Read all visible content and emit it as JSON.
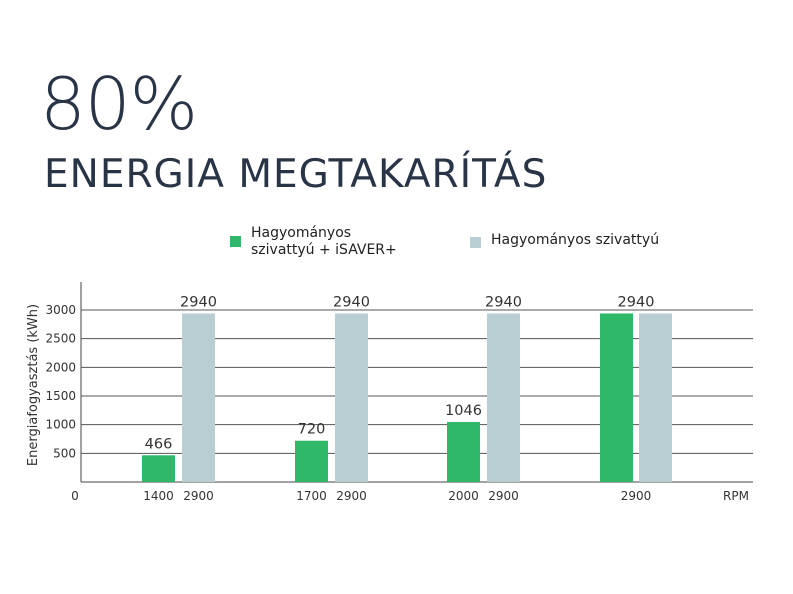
{
  "header": {
    "percent": "80%",
    "title": "ENERGIA MEGTAKARÍTÁS"
  },
  "colors": {
    "isaver": "#2fb86a",
    "conventional": "#b8ced2",
    "text_dark": "#2a3447",
    "grid": "#555555"
  },
  "chart_data": {
    "type": "bar",
    "ylabel": "Energiafogyasztás (kWh)",
    "xlabel": "RPM",
    "ylim": [
      0,
      3000
    ],
    "y_ticks": [
      0,
      500,
      1000,
      1500,
      2000,
      2500,
      3000
    ],
    "grid": true,
    "legend_position": "top",
    "groups": [
      {
        "bars": [
          {
            "series": "Hagyományos szivattyú + iSAVER+",
            "rpm": "1400",
            "value": 466
          },
          {
            "series": "Hagyományos szivattyú",
            "rpm": "2900",
            "value": 2940
          }
        ]
      },
      {
        "bars": [
          {
            "series": "Hagyományos szivattyú + iSAVER+",
            "rpm": "1700",
            "value": 720
          },
          {
            "series": "Hagyományos szivattyú",
            "rpm": "2900",
            "value": 2940
          }
        ]
      },
      {
        "bars": [
          {
            "series": "Hagyományos szivattyú + iSAVER+",
            "rpm": "2000",
            "value": 1046
          },
          {
            "series": "Hagyományos szivattyú",
            "rpm": "2900",
            "value": 2940
          }
        ]
      },
      {
        "shared_label": "2940",
        "shared_rpm": "2900",
        "bars": [
          {
            "series": "Hagyományos szivattyú + iSAVER+",
            "value": 2940
          },
          {
            "series": "Hagyományos szivattyú",
            "value": 2940
          }
        ]
      }
    ],
    "series": [
      {
        "name": "Hagyományos\nszivattyú + iSAVER+",
        "color": "#2fb86a"
      },
      {
        "name": "Hagyományos szivattyú",
        "color": "#b8ced2"
      }
    ]
  }
}
